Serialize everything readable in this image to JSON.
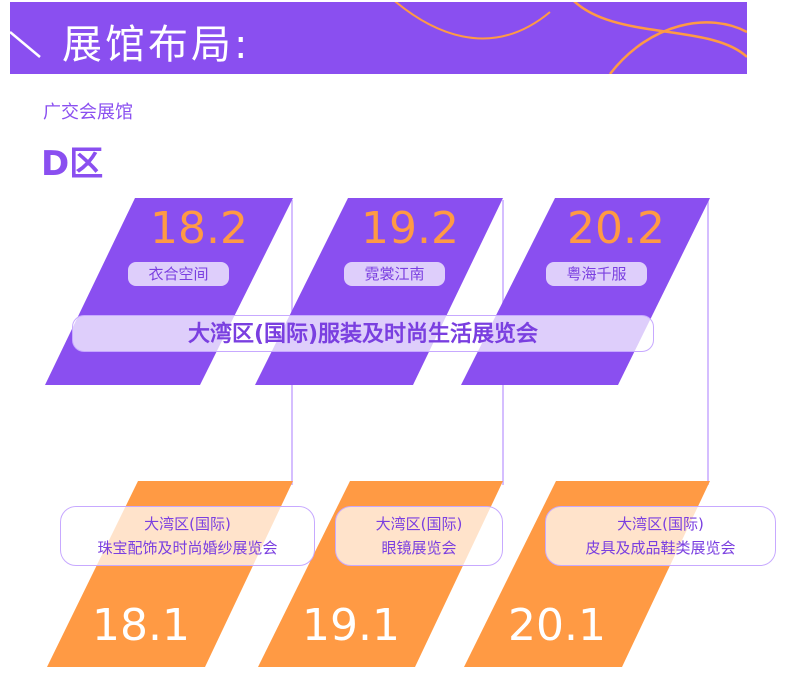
{
  "banner": {
    "title": "展馆布局:"
  },
  "venue": "广交会展馆",
  "zone": "D区",
  "upper_halls": [
    {
      "number": "18.2",
      "label": "衣合空间"
    },
    {
      "number": "19.2",
      "label": "霓裳江南"
    },
    {
      "number": "20.2",
      "label": "粤海千服"
    }
  ],
  "upper_fair": "大湾区(国际)服装及时尚生活展览会",
  "lower_halls": [
    {
      "number": "18.1",
      "line1": "大湾区(国际)",
      "line2": "珠宝配饰及时尚婚纱展览会"
    },
    {
      "number": "19.1",
      "line1": "大湾区(国际)",
      "line2": "眼镜展览会"
    },
    {
      "number": "20.1",
      "line1": "大湾区(国际)",
      "line2": "皮具及成品鞋类展览会"
    }
  ],
  "colors": {
    "purple": "#8a4ff0",
    "orange": "#ff9a44",
    "text_purple": "#7a3fe0"
  }
}
